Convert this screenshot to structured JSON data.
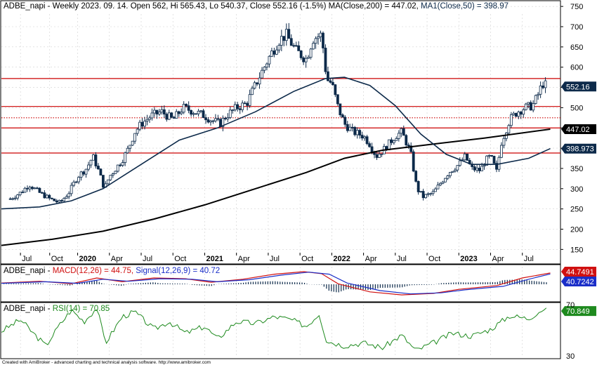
{
  "main_panel": {
    "title_prefix": "ADBE_napi - Weekly 2023. 09. 14. Open 562, Hi 565.43, Lo 540.37, Close 552.16 (-1.5%) ",
    "ma200_label": "MA(Close,200) = 447.02, ",
    "ma50_label": "MA1(Close,50) = 398.97",
    "price_badge": "552.16",
    "ma200_badge": "447.02",
    "ma50_badge": "398.973"
  },
  "macd_panel": {
    "title_prefix": "ADBE_napi - ",
    "macd_label": "MACD(12,26) = 44.75, ",
    "signal_label": "Signal(12,26,9) = 40.72",
    "macd_badge": "44.7491",
    "signal_badge": "40.7242"
  },
  "rsi_panel": {
    "title_prefix": "ADBE_napi - ",
    "rsi_label": "RSI(14) = 70.85",
    "rsi_badge": "70.849",
    "scale_top": "70",
    "scale_bottom": "30"
  },
  "footer": "Created with AmiBroker - advanced charting and technical analysis software. http://www.amibroker.com",
  "colors": {
    "candle": "#0d2a4a",
    "ma200": "#000000",
    "ma50": "#0d2a4a",
    "support_line": "#cc0000",
    "macd": "#d01010",
    "signal": "#1a2ec8",
    "rsi": "#1e8a1e",
    "grid": "#d0d0d0"
  },
  "chart_data": [
    {
      "type": "candlestick",
      "title": "ADBE_napi - Weekly 2023. 09. 14. Open 562, Hi 565.43, Lo 540.37, Close 552.16 (-1.5%)",
      "y_ticks": [
        150,
        200,
        250,
        300,
        350,
        400,
        450,
        500,
        550,
        600,
        650,
        700,
        750
      ],
      "ylim": [
        115,
        770
      ],
      "x_labels": [
        "Jul",
        "Oct",
        "2020",
        "Apr",
        "Jul",
        "Oct",
        "2021",
        "Apr",
        "Jul",
        "Oct",
        "2022",
        "Apr",
        "Jul",
        "Oct",
        "2023",
        "Apr",
        "Jul"
      ],
      "horizontal_levels": [
        {
          "value": 572,
          "style": "solid"
        },
        {
          "value": 503,
          "style": "solid"
        },
        {
          "value": 475,
          "style": "dotted"
        },
        {
          "value": 450,
          "style": "solid"
        },
        {
          "value": 388,
          "style": "solid"
        }
      ],
      "close_path": [
        [
          2019.47,
          275
        ],
        [
          2019.55,
          290
        ],
        [
          2019.62,
          310
        ],
        [
          2019.7,
          290
        ],
        [
          2019.78,
          275
        ],
        [
          2019.86,
          265
        ],
        [
          2019.93,
          290
        ],
        [
          2020.0,
          330
        ],
        [
          2020.07,
          350
        ],
        [
          2020.12,
          380
        ],
        [
          2020.17,
          340
        ],
        [
          2020.21,
          300
        ],
        [
          2020.25,
          330
        ],
        [
          2020.3,
          350
        ],
        [
          2020.35,
          370
        ],
        [
          2020.4,
          400
        ],
        [
          2020.45,
          440
        ],
        [
          2020.5,
          460
        ],
        [
          2020.58,
          480
        ],
        [
          2020.66,
          490
        ],
        [
          2020.75,
          470
        ],
        [
          2020.83,
          500
        ],
        [
          2020.92,
          490
        ],
        [
          2021.0,
          480
        ],
        [
          2021.05,
          470
        ],
        [
          2021.12,
          460
        ],
        [
          2021.17,
          480
        ],
        [
          2021.25,
          500
        ],
        [
          2021.33,
          510
        ],
        [
          2021.42,
          570
        ],
        [
          2021.5,
          620
        ],
        [
          2021.58,
          665
        ],
        [
          2021.64,
          680
        ],
        [
          2021.72,
          640
        ],
        [
          2021.8,
          620
        ],
        [
          2021.85,
          670
        ],
        [
          2021.92,
          680
        ],
        [
          2021.96,
          570
        ],
        [
          2022.0,
          560
        ],
        [
          2022.05,
          500
        ],
        [
          2022.1,
          460
        ],
        [
          2022.17,
          440
        ],
        [
          2022.25,
          430
        ],
        [
          2022.3,
          410
        ],
        [
          2022.35,
          380
        ],
        [
          2022.42,
          400
        ],
        [
          2022.5,
          430
        ],
        [
          2022.55,
          440
        ],
        [
          2022.62,
          390
        ],
        [
          2022.67,
          300
        ],
        [
          2022.72,
          280
        ],
        [
          2022.8,
          290
        ],
        [
          2022.87,
          320
        ],
        [
          2022.92,
          340
        ],
        [
          2023.0,
          360
        ],
        [
          2023.05,
          380
        ],
        [
          2023.1,
          350
        ],
        [
          2023.17,
          345
        ],
        [
          2023.21,
          370
        ],
        [
          2023.25,
          380
        ],
        [
          2023.3,
          340
        ],
        [
          2023.33,
          410
        ],
        [
          2023.4,
          470
        ],
        [
          2023.46,
          490
        ],
        [
          2023.52,
          500
        ],
        [
          2023.58,
          505
        ],
        [
          2023.62,
          530
        ],
        [
          2023.66,
          560
        ],
        [
          2023.7,
          552
        ]
      ],
      "ma200_path": [
        [
          2019.4,
          160
        ],
        [
          2019.8,
          175
        ],
        [
          2020.2,
          195
        ],
        [
          2020.6,
          225
        ],
        [
          2021.0,
          260
        ],
        [
          2021.4,
          300
        ],
        [
          2021.8,
          340
        ],
        [
          2022.1,
          375
        ],
        [
          2022.4,
          395
        ],
        [
          2022.8,
          410
        ],
        [
          2023.2,
          425
        ],
        [
          2023.72,
          447
        ]
      ],
      "ma50_path": [
        [
          2019.4,
          250
        ],
        [
          2019.7,
          255
        ],
        [
          2019.95,
          270
        ],
        [
          2020.2,
          300
        ],
        [
          2020.5,
          360
        ],
        [
          2020.8,
          420
        ],
        [
          2021.1,
          450
        ],
        [
          2021.4,
          490
        ],
        [
          2021.7,
          540
        ],
        [
          2021.95,
          572
        ],
        [
          2022.1,
          575
        ],
        [
          2022.3,
          555
        ],
        [
          2022.5,
          505
        ],
        [
          2022.7,
          435
        ],
        [
          2022.9,
          385
        ],
        [
          2023.1,
          360
        ],
        [
          2023.3,
          360
        ],
        [
          2023.55,
          375
        ],
        [
          2023.72,
          399
        ]
      ],
      "last": {
        "open": 562,
        "high": 565.43,
        "low": 540.37,
        "close": 552.16
      }
    },
    {
      "type": "line",
      "title": "ADBE_napi - MACD(12,26) = 44.75, Signal(12,26,9) = 40.72",
      "series": [
        {
          "name": "MACD(12,26)",
          "values": [
            [
              2019.4,
              5
            ],
            [
              2019.7,
              12
            ],
            [
              2019.95,
              2
            ],
            [
              2020.15,
              25
            ],
            [
              2020.35,
              10
            ],
            [
              2020.6,
              25
            ],
            [
              2020.85,
              22
            ],
            [
              2021.05,
              8
            ],
            [
              2021.3,
              20
            ],
            [
              2021.55,
              40
            ],
            [
              2021.78,
              50
            ],
            [
              2021.92,
              42
            ],
            [
              2022.05,
              2
            ],
            [
              2022.3,
              -30
            ],
            [
              2022.55,
              -42
            ],
            [
              2022.8,
              -36
            ],
            [
              2023.0,
              -20
            ],
            [
              2023.3,
              -5
            ],
            [
              2023.5,
              25
            ],
            [
              2023.72,
              44.75
            ]
          ]
        },
        {
          "name": "Signal(12,26,9)",
          "values": [
            [
              2019.4,
              4
            ],
            [
              2019.75,
              10
            ],
            [
              2020.0,
              4
            ],
            [
              2020.2,
              20
            ],
            [
              2020.4,
              12
            ],
            [
              2020.65,
              22
            ],
            [
              2020.9,
              20
            ],
            [
              2021.1,
              10
            ],
            [
              2021.35,
              18
            ],
            [
              2021.6,
              36
            ],
            [
              2021.82,
              48
            ],
            [
              2021.98,
              40
            ],
            [
              2022.12,
              5
            ],
            [
              2022.38,
              -25
            ],
            [
              2022.62,
              -38
            ],
            [
              2022.86,
              -34
            ],
            [
              2023.05,
              -22
            ],
            [
              2023.35,
              -8
            ],
            [
              2023.55,
              20
            ],
            [
              2023.72,
              40.72
            ]
          ]
        }
      ],
      "last": {
        "macd": 44.75,
        "signal": 40.72
      }
    },
    {
      "type": "line",
      "title": "ADBE_napi - RSI(14) = 70.85",
      "y_ticks": [
        30,
        70
      ],
      "series": [
        {
          "name": "RSI(14)",
          "values": [
            [
              2019.4,
              50
            ],
            [
              2019.55,
              62
            ],
            [
              2019.65,
              48
            ],
            [
              2019.75,
              35
            ],
            [
              2019.85,
              55
            ],
            [
              2019.95,
              72
            ],
            [
              2020.05,
              60
            ],
            [
              2020.15,
              74
            ],
            [
              2020.22,
              38
            ],
            [
              2020.35,
              65
            ],
            [
              2020.45,
              70
            ],
            [
              2020.6,
              52
            ],
            [
              2020.72,
              60
            ],
            [
              2020.85,
              48
            ],
            [
              2021.0,
              55
            ],
            [
              2021.1,
              42
            ],
            [
              2021.25,
              60
            ],
            [
              2021.4,
              58
            ],
            [
              2021.55,
              65
            ],
            [
              2021.68,
              62
            ],
            [
              2021.8,
              55
            ],
            [
              2021.9,
              68
            ],
            [
              2021.96,
              40
            ],
            [
              2022.1,
              35
            ],
            [
              2022.25,
              38
            ],
            [
              2022.4,
              33
            ],
            [
              2022.55,
              46
            ],
            [
              2022.66,
              30
            ],
            [
              2022.8,
              38
            ],
            [
              2022.95,
              48
            ],
            [
              2023.1,
              45
            ],
            [
              2023.25,
              52
            ],
            [
              2023.4,
              66
            ],
            [
              2023.55,
              63
            ],
            [
              2023.65,
              72
            ],
            [
              2023.72,
              70.85
            ]
          ]
        }
      ],
      "last": {
        "rsi": 70.85
      }
    }
  ]
}
